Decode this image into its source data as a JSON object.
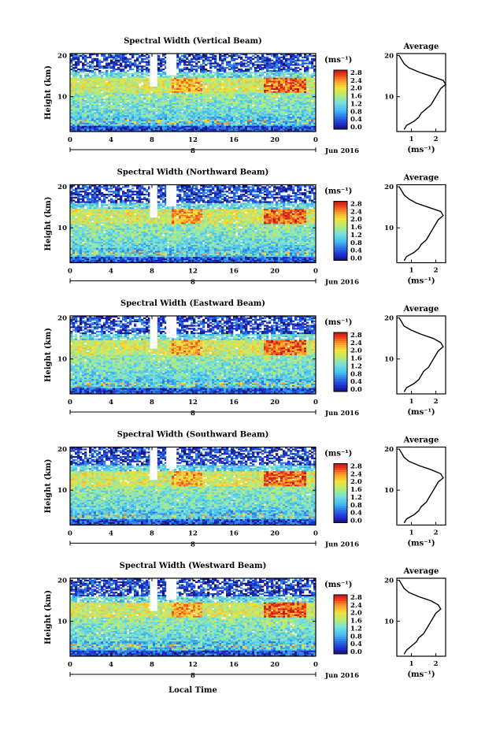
{
  "figure": {
    "xlabel": "Local Time",
    "date_label": "Jun 2016",
    "day_marker": "8",
    "cbar_unit": "(ms⁻¹)",
    "avg_title": "Average",
    "avg_xlabel": "(ms⁻¹)"
  },
  "chart_data": [
    {
      "type": "heatmap",
      "title": "Spectral Width (Vertical Beam)",
      "ylabel": "Height (km)",
      "x_ticks": [
        "0",
        "4",
        "8",
        "12",
        "16",
        "20",
        "0"
      ],
      "y_ticks": [
        "20",
        "10"
      ],
      "xlim": [
        0,
        24
      ],
      "ylim": [
        1.5,
        20.5
      ],
      "colorbar": {
        "ticks": [
          "2.8",
          "2.4",
          "2.0",
          "1.6",
          "1.2",
          "0.8",
          "0.4",
          "0.0"
        ],
        "range": [
          0,
          2.8
        ]
      },
      "average_profile": {
        "x_ticks": [
          "1",
          "2"
        ],
        "y_ticks": [
          "20",
          "10"
        ],
        "xlim": [
          0.4,
          2.4
        ],
        "height_km": [
          2,
          3,
          4,
          5,
          6,
          7,
          8,
          9,
          10,
          11,
          12,
          13,
          14,
          15,
          16,
          17,
          18,
          19,
          20
        ],
        "value": [
          0.7,
          0.8,
          1.1,
          1.3,
          1.4,
          1.6,
          1.8,
          1.9,
          2.0,
          2.1,
          2.2,
          2.4,
          2.3,
          1.8,
          1.3,
          0.9,
          0.7,
          0.6,
          0.5
        ]
      }
    },
    {
      "type": "heatmap",
      "title": "Spectral Width (Northward Beam)",
      "ylabel": "Height (km)",
      "x_ticks": [
        "0",
        "4",
        "8",
        "12",
        "16",
        "20",
        "0"
      ],
      "y_ticks": [
        "20",
        "10"
      ],
      "xlim": [
        0,
        24
      ],
      "ylim": [
        1.5,
        20.5
      ],
      "colorbar": {
        "ticks": [
          "2.8",
          "2.4",
          "2.0",
          "1.6",
          "1.2",
          "0.8",
          "0.4",
          "0.0"
        ],
        "range": [
          0,
          2.8
        ]
      },
      "average_profile": {
        "x_ticks": [
          "1",
          "2"
        ],
        "y_ticks": [
          "20",
          "10"
        ],
        "xlim": [
          0.4,
          2.4
        ],
        "height_km": [
          2,
          3,
          4,
          5,
          6,
          7,
          8,
          9,
          10,
          11,
          12,
          13,
          14,
          15,
          16,
          17,
          18,
          19,
          20
        ],
        "value": [
          0.7,
          0.8,
          1.1,
          1.3,
          1.4,
          1.6,
          1.7,
          1.8,
          1.9,
          2.0,
          2.1,
          2.3,
          2.2,
          1.7,
          1.2,
          0.9,
          0.7,
          0.6,
          0.5
        ]
      }
    },
    {
      "type": "heatmap",
      "title": "Spectral Width (Eastward Beam)",
      "ylabel": "Height (km)",
      "x_ticks": [
        "0",
        "4",
        "8",
        "12",
        "16",
        "20",
        "0"
      ],
      "y_ticks": [
        "20",
        "10"
      ],
      "xlim": [
        0,
        24
      ],
      "ylim": [
        1.5,
        20.5
      ],
      "colorbar": {
        "ticks": [
          "2.8",
          "2.4",
          "2.0",
          "1.6",
          "1.2",
          "0.8",
          "0.4",
          "0.0"
        ],
        "range": [
          0,
          2.8
        ]
      },
      "average_profile": {
        "x_ticks": [
          "1",
          "2"
        ],
        "y_ticks": [
          "20",
          "10"
        ],
        "xlim": [
          0.4,
          2.4
        ],
        "height_km": [
          2,
          3,
          4,
          5,
          6,
          7,
          8,
          9,
          10,
          11,
          12,
          13,
          14,
          15,
          16,
          17,
          18,
          19,
          20
        ],
        "value": [
          0.7,
          0.8,
          1.1,
          1.3,
          1.4,
          1.5,
          1.7,
          1.8,
          1.9,
          2.0,
          2.1,
          2.3,
          2.2,
          1.9,
          1.4,
          1.0,
          0.7,
          0.6,
          0.5
        ]
      }
    },
    {
      "type": "heatmap",
      "title": "Spectral Width (Southward Beam)",
      "ylabel": "Height (km)",
      "x_ticks": [
        "0",
        "4",
        "8",
        "12",
        "16",
        "20",
        "0"
      ],
      "y_ticks": [
        "20",
        "10"
      ],
      "xlim": [
        0,
        24
      ],
      "ylim": [
        1.5,
        20.5
      ],
      "colorbar": {
        "ticks": [
          "2.8",
          "2.4",
          "2.0",
          "1.6",
          "1.2",
          "0.8",
          "0.4",
          "0.0"
        ],
        "range": [
          0,
          2.8
        ]
      },
      "average_profile": {
        "x_ticks": [
          "1",
          "2"
        ],
        "y_ticks": [
          "20",
          "10"
        ],
        "xlim": [
          0.4,
          2.4
        ],
        "height_km": [
          2,
          3,
          4,
          5,
          6,
          7,
          8,
          9,
          10,
          11,
          12,
          13,
          14,
          15,
          16,
          17,
          18,
          19,
          20
        ],
        "value": [
          0.7,
          0.8,
          1.1,
          1.3,
          1.4,
          1.6,
          1.7,
          1.8,
          1.9,
          2.0,
          2.1,
          2.3,
          2.2,
          1.8,
          1.3,
          0.9,
          0.7,
          0.6,
          0.5
        ]
      }
    },
    {
      "type": "heatmap",
      "title": "Spectral Width (Westward Beam)",
      "ylabel": "Height (km)",
      "x_ticks": [
        "0",
        "4",
        "8",
        "12",
        "16",
        "20",
        "0"
      ],
      "y_ticks": [
        "20",
        "10"
      ],
      "xlim": [
        0,
        24
      ],
      "ylim": [
        1.5,
        20.5
      ],
      "colorbar": {
        "ticks": [
          "2.8",
          "2.4",
          "2.0",
          "1.6",
          "1.2",
          "0.8",
          "0.4",
          "0.0"
        ],
        "range": [
          0,
          2.8
        ]
      },
      "average_profile": {
        "x_ticks": [
          "1",
          "2"
        ],
        "y_ticks": [
          "20",
          "10"
        ],
        "xlim": [
          0.4,
          2.4
        ],
        "height_km": [
          2,
          3,
          4,
          5,
          6,
          7,
          8,
          9,
          10,
          11,
          12,
          13,
          14,
          15,
          16,
          17,
          18,
          19,
          20
        ],
        "value": [
          0.7,
          0.8,
          1.0,
          1.2,
          1.3,
          1.5,
          1.6,
          1.7,
          1.8,
          1.9,
          2.0,
          2.2,
          2.1,
          1.8,
          1.3,
          0.9,
          0.7,
          0.6,
          0.5
        ]
      }
    }
  ]
}
